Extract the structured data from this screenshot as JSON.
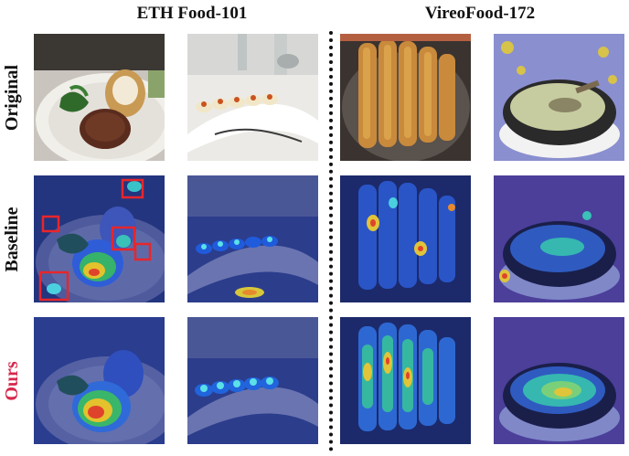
{
  "titles": {
    "left": "ETH Food-101",
    "right": "VireoFood-172"
  },
  "rows": {
    "original": "Original",
    "baseline": "Baseline",
    "ours": "Ours"
  },
  "colors": {
    "ours_label": "#d6294d",
    "highlight_box": "#e8262b",
    "heatmap_base": "#2a3f9e"
  },
  "images": [
    {
      "row": "original",
      "col": 1,
      "subject": "steak-and-potato"
    },
    {
      "row": "original",
      "col": 2,
      "subject": "deviled-eggs"
    },
    {
      "row": "original",
      "col": 3,
      "subject": "fried-dough-sticks"
    },
    {
      "row": "original",
      "col": 4,
      "subject": "soup-bowl"
    },
    {
      "row": "baseline",
      "col": 1,
      "subject": "steak-and-potato-heatmap"
    },
    {
      "row": "baseline",
      "col": 2,
      "subject": "deviled-eggs-heatmap"
    },
    {
      "row": "baseline",
      "col": 3,
      "subject": "fried-dough-sticks-heatmap"
    },
    {
      "row": "baseline",
      "col": 4,
      "subject": "soup-bowl-heatmap"
    },
    {
      "row": "ours",
      "col": 1,
      "subject": "steak-and-potato-heatmap"
    },
    {
      "row": "ours",
      "col": 2,
      "subject": "deviled-eggs-heatmap"
    },
    {
      "row": "ours",
      "col": 3,
      "subject": "fried-dough-sticks-heatmap"
    },
    {
      "row": "ours",
      "col": 4,
      "subject": "soup-bowl-heatmap"
    }
  ]
}
